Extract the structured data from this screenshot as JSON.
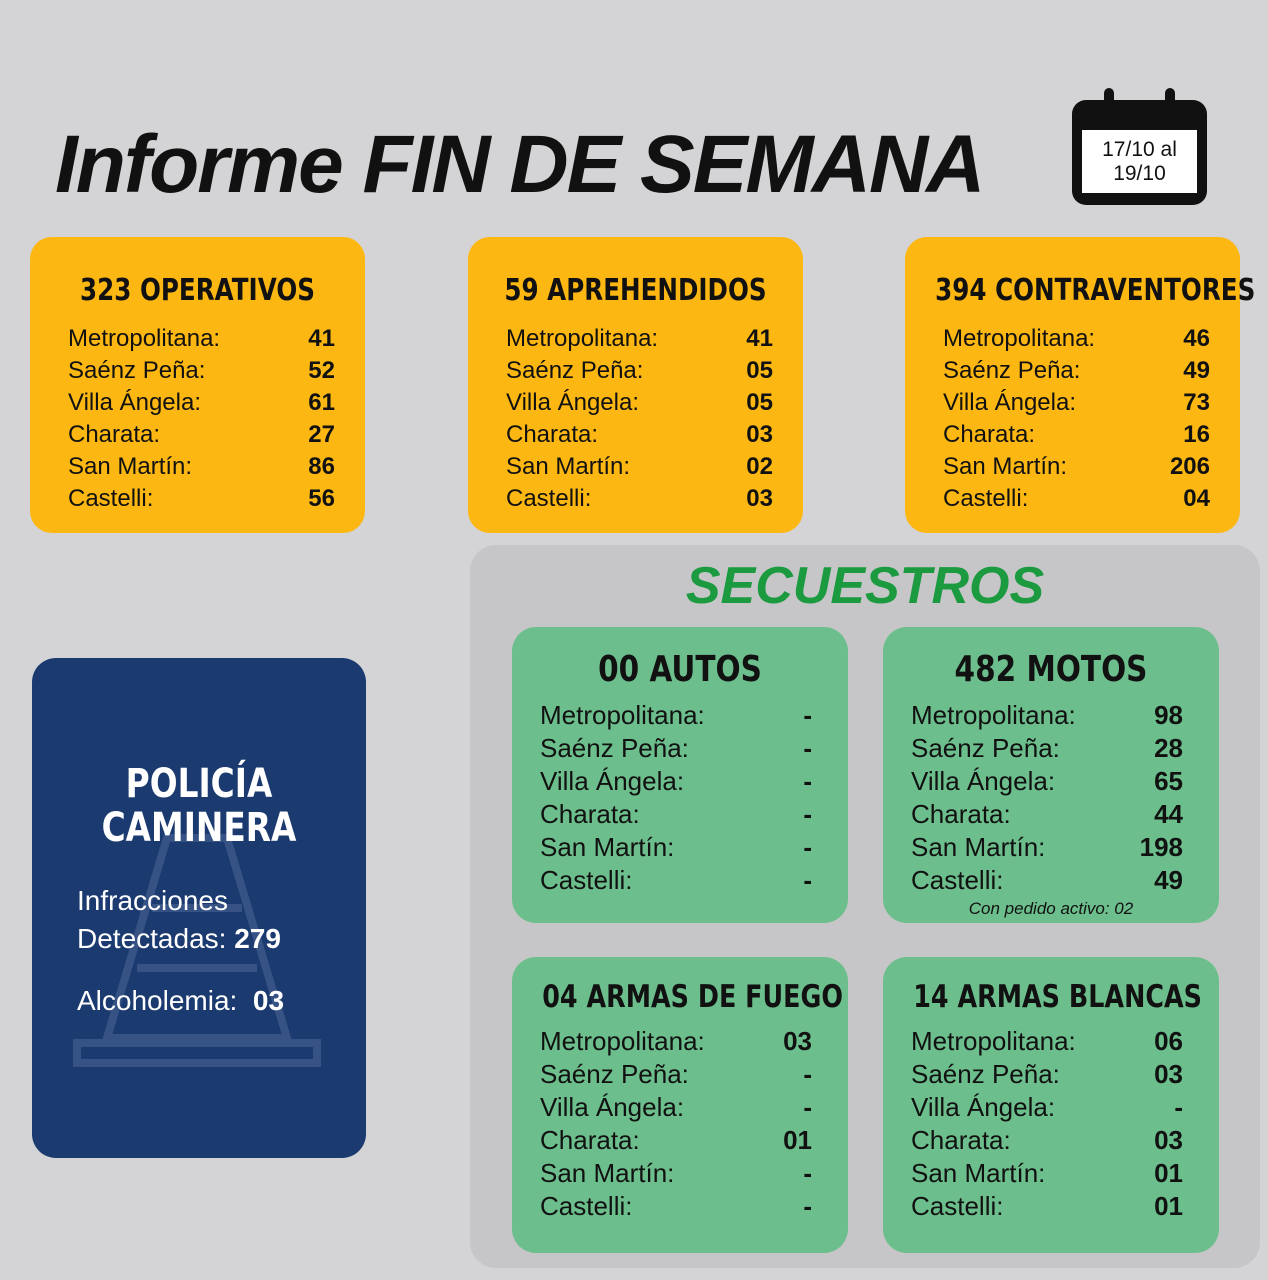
{
  "title": {
    "normal": "Informe ",
    "bold": "FIN DE SEMANA"
  },
  "calendar": {
    "line1": "17/10 al",
    "line2": "19/10"
  },
  "colors": {
    "yellow": "#fcb712",
    "green": "#6cbf8c",
    "blue": "#1b3a6f",
    "accent_green": "#1b9a3f"
  },
  "top_cards": [
    {
      "header": "323 OPERATIVOS",
      "icon": "police-officer-icon",
      "rows": [
        [
          "Metropolitana:",
          "41"
        ],
        [
          "Saénz Peña:",
          "52"
        ],
        [
          "Villa Ángela:",
          "61"
        ],
        [
          "Charata:",
          "27"
        ],
        [
          "San Martín:",
          "86"
        ],
        [
          "Castelli:",
          "56"
        ]
      ]
    },
    {
      "header": "59 APREHENDIDOS",
      "icon": "handcuffs-icon",
      "rows": [
        [
          "Metropolitana:",
          "41"
        ],
        [
          "Saénz Peña:",
          "05"
        ],
        [
          "Villa Ángela:",
          "05"
        ],
        [
          "Charata:",
          "03"
        ],
        [
          "San Martín:",
          "02"
        ],
        [
          "Castelli:",
          "03"
        ]
      ]
    },
    {
      "header": "394 CONTRAVENTORES",
      "icon": "book-icon",
      "rows": [
        [
          "Metropolitana:",
          "46"
        ],
        [
          "Saénz Peña:",
          "49"
        ],
        [
          "Villa Ángela:",
          "73"
        ],
        [
          "Charata:",
          "16"
        ],
        [
          "San Martín:",
          "206"
        ],
        [
          "Castelli:",
          "04"
        ]
      ]
    }
  ],
  "secuestros": {
    "title": "SECUESTROS",
    "cards": [
      {
        "header": "00 AUTOS",
        "icon": "car-icon",
        "rows": [
          [
            "Metropolitana:",
            "-"
          ],
          [
            "Saénz Peña:",
            "-"
          ],
          [
            "Villa Ángela:",
            "-"
          ],
          [
            "Charata:",
            "-"
          ],
          [
            "San Martín:",
            "-"
          ],
          [
            "Castelli:",
            "-"
          ]
        ]
      },
      {
        "header": "482 MOTOS",
        "icon": "scooter-icon",
        "rows": [
          [
            "Metropolitana:",
            "98"
          ],
          [
            "Saénz Peña:",
            "28"
          ],
          [
            "Villa Ángela:",
            "65"
          ],
          [
            "Charata:",
            "44"
          ],
          [
            "San Martín:",
            "198"
          ],
          [
            "Castelli:",
            "49"
          ]
        ],
        "note": "Con pedido activo: 02"
      },
      {
        "header": "04 ARMAS DE FUEGO",
        "icon": "gun-icon",
        "rows": [
          [
            "Metropolitana:",
            "03"
          ],
          [
            "Saénz Peña:",
            "-"
          ],
          [
            "Villa Ángela:",
            "-"
          ],
          [
            "Charata:",
            "01"
          ],
          [
            "San Martín:",
            "-"
          ],
          [
            "Castelli:",
            "-"
          ]
        ]
      },
      {
        "header": "14 ARMAS BLANCAS",
        "icon": "knife-icon",
        "rows": [
          [
            "Metropolitana:",
            "06"
          ],
          [
            "Saénz Peña:",
            "03"
          ],
          [
            "Villa Ángela:",
            "-"
          ],
          [
            "Charata:",
            "03"
          ],
          [
            "San Martín:",
            "01"
          ],
          [
            "Castelli:",
            "01"
          ]
        ]
      }
    ]
  },
  "caminera": {
    "title1": "POLICÍA",
    "title2": "CAMINERA",
    "infr_label1": "Infracciones",
    "infr_label2": "Detectadas:",
    "infr_value": "279",
    "alc_label": "Alcoholemia:",
    "alc_value": "03",
    "icon": "traffic-cone-icon"
  }
}
